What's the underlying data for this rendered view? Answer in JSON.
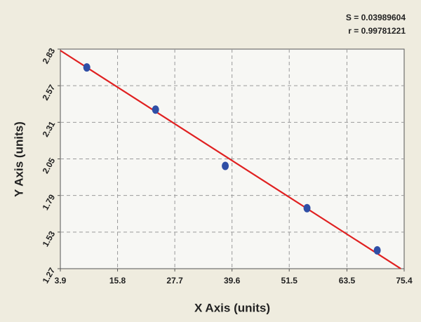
{
  "chart_data": {
    "type": "scatter",
    "annotations": [
      "S = 0.03989604",
      "r = 0.99781221"
    ],
    "x_label": "X Axis (units)",
    "y_label": "Y Axis (units)",
    "x": [
      9.4,
      23.7,
      38.2,
      55.2,
      69.8
    ],
    "values": [
      2.7,
      2.4,
      2.0,
      1.7,
      1.4
    ],
    "color": "#2f4fa6",
    "fit": {
      "x": [
        3.9,
        74.7
      ],
      "y": [
        2.82,
        1.27
      ],
      "color": "#e02020"
    },
    "xlim": [
      3.9,
      75.4
    ],
    "xticks": [
      3.9,
      15.8,
      27.7,
      39.6,
      51.5,
      63.5,
      75.4
    ],
    "ylim": [
      1.27,
      2.83
    ],
    "yticks": [
      1.27,
      1.53,
      1.79,
      2.05,
      2.31,
      2.57,
      2.83
    ],
    "grid": true
  }
}
